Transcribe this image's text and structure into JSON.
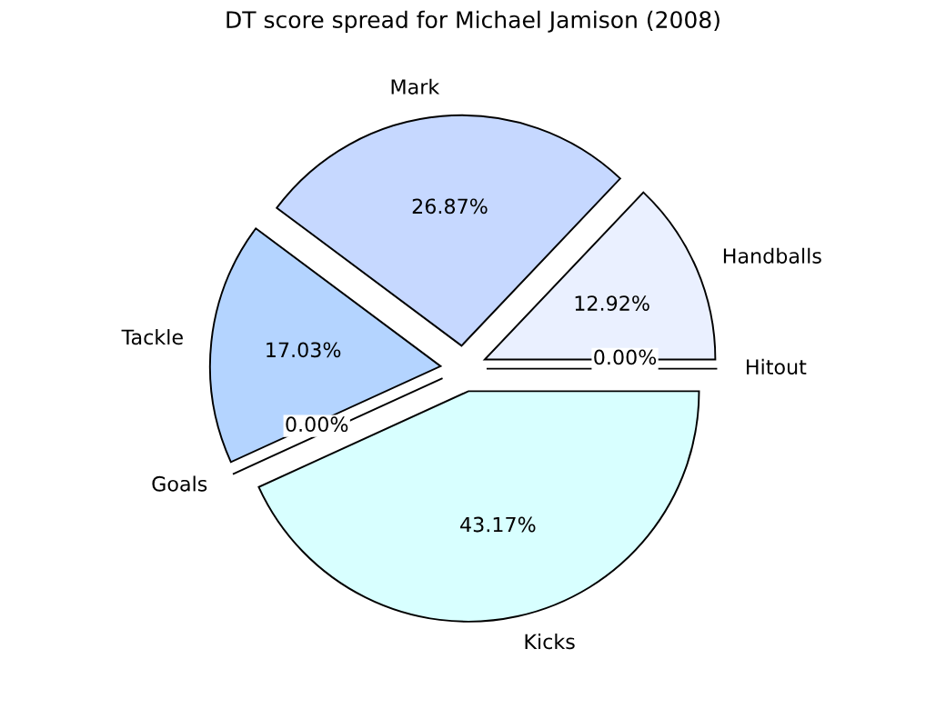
{
  "chart_data": {
    "type": "pie",
    "title": "DT score spread for Michael Jamison (2008)",
    "categories": [
      "Handballs",
      "Mark",
      "Tackle",
      "Goals",
      "Kicks",
      "Hitout"
    ],
    "values": [
      12.92,
      26.87,
      17.03,
      0,
      43.17,
      0
    ],
    "value_labels": [
      "12.92%",
      "26.87%",
      "17.03%",
      "0.00%",
      "43.17%",
      "0.00%"
    ],
    "colors": [
      "#eaf0ff",
      "#c6d8ff",
      "#b4d4ff",
      "#b0e0ff",
      "#d8ffff",
      "#e0e0ff"
    ],
    "legend": false
  }
}
